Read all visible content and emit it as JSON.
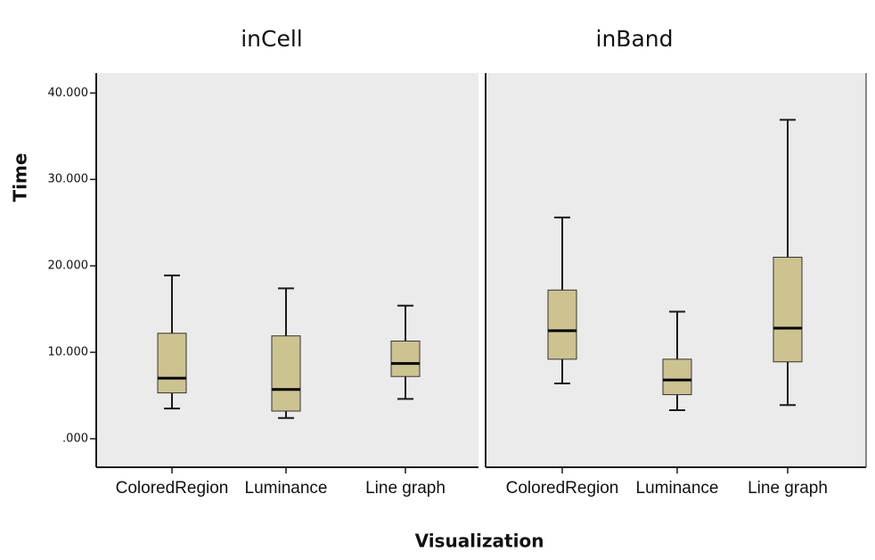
{
  "chart_data": {
    "type": "boxplot",
    "xlabel": "Visualization",
    "ylabel": "Time",
    "ylim": [
      -3.3,
      42.3
    ],
    "y_ticks": [
      {
        "value": 0,
        "label": ".000"
      },
      {
        "value": 10,
        "label": "10.000"
      },
      {
        "value": 20,
        "label": "20.000"
      },
      {
        "value": 30,
        "label": "30.000"
      },
      {
        "value": 40,
        "label": "40.000"
      }
    ],
    "grid": false,
    "colors": {
      "box_fill": "#ccc38f",
      "panel_bg": "#ebebeb",
      "stroke": "#1a1a1a"
    },
    "categories": [
      "ColoredRegion",
      "Luminance",
      "Line graph"
    ],
    "panels": [
      {
        "title": "inCell",
        "boxes": [
          {
            "category": "ColoredRegion",
            "min": 3.5,
            "q1": 5.3,
            "median": 7.0,
            "q3": 12.2,
            "max": 18.9
          },
          {
            "category": "Luminance",
            "min": 2.4,
            "q1": 3.2,
            "median": 5.7,
            "q3": 11.9,
            "max": 17.4
          },
          {
            "category": "Line graph",
            "min": 4.6,
            "q1": 7.2,
            "median": 8.7,
            "q3": 11.3,
            "max": 15.4
          }
        ]
      },
      {
        "title": "inBand",
        "boxes": [
          {
            "category": "ColoredRegion",
            "min": 6.4,
            "q1": 9.2,
            "median": 12.5,
            "q3": 17.2,
            "max": 25.6
          },
          {
            "category": "Luminance",
            "min": 3.3,
            "q1": 5.1,
            "median": 6.8,
            "q3": 9.2,
            "max": 14.7
          },
          {
            "category": "Line graph",
            "min": 3.9,
            "q1": 8.9,
            "median": 12.8,
            "q3": 21.0,
            "max": 36.9
          }
        ]
      }
    ]
  }
}
